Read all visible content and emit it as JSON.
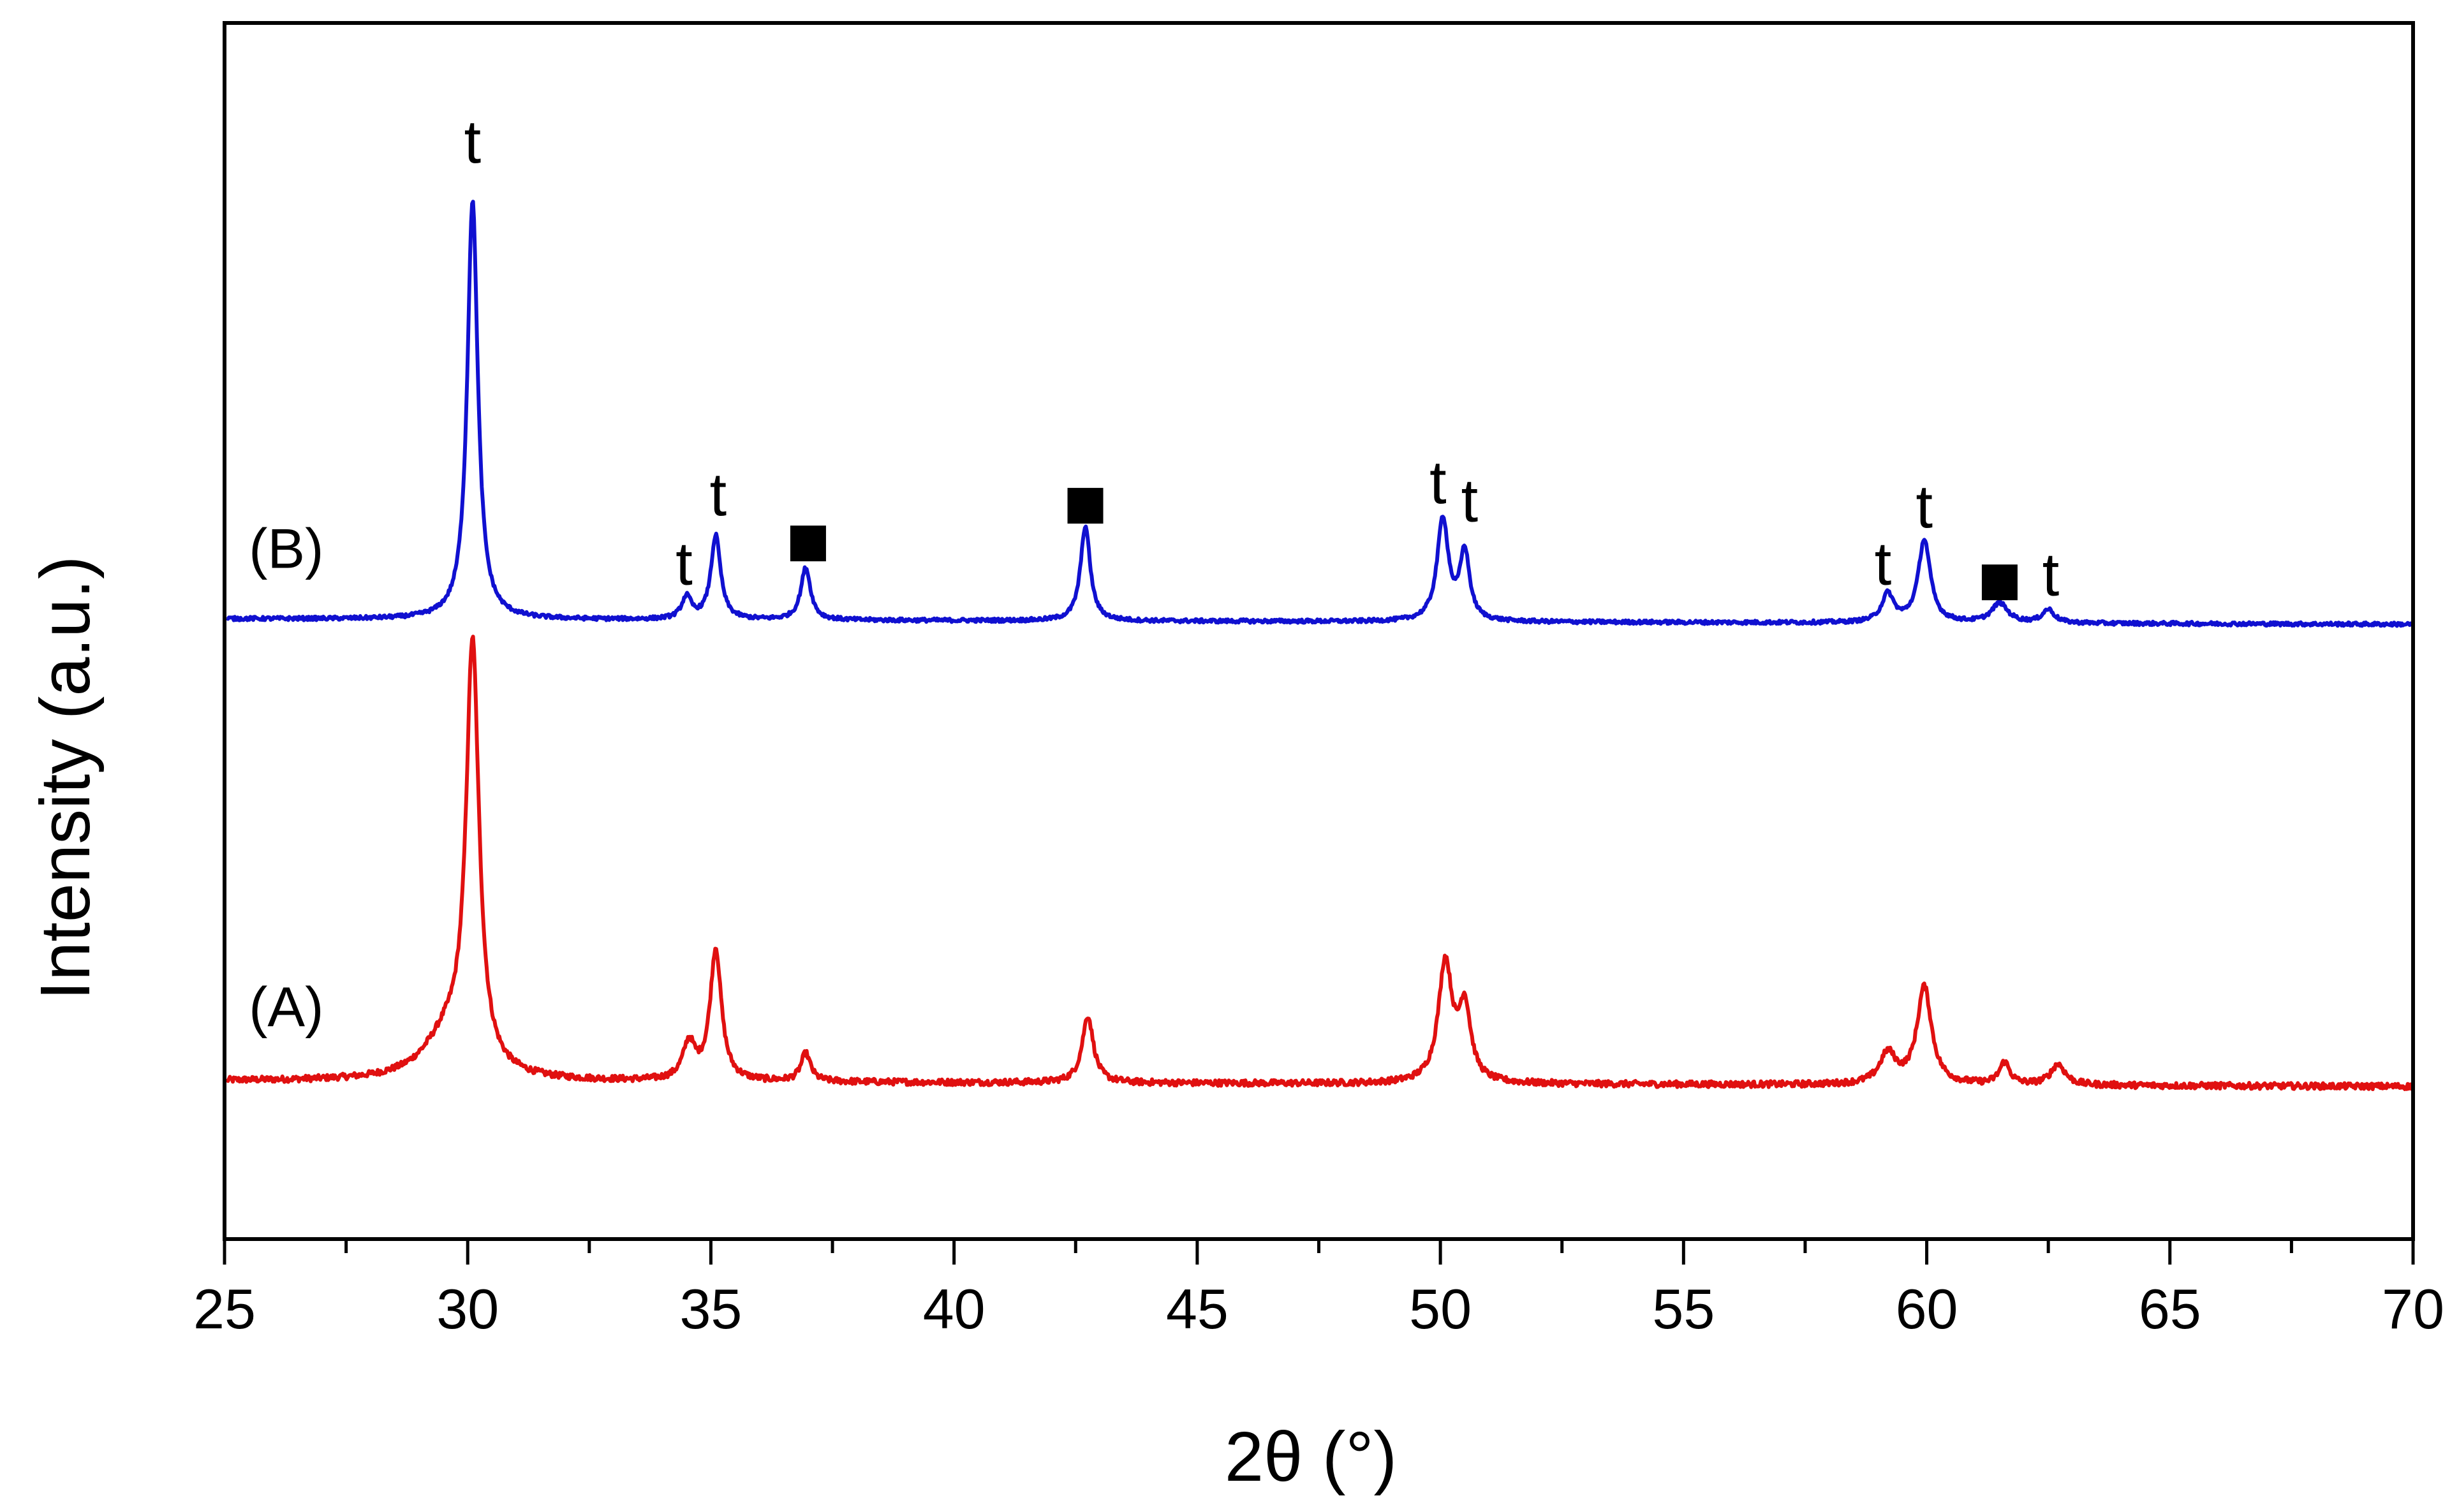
{
  "chart_data": {
    "type": "line",
    "title": "",
    "xlabel": "2θ (°)",
    "ylabel": "Intensity (a.u.)",
    "xlim": [
      25,
      70
    ],
    "ylim": [
      0,
      100
    ],
    "x_major_ticks": [
      25,
      30,
      35,
      40,
      45,
      50,
      55,
      60,
      65,
      70
    ],
    "x_tick_labels": [
      "25",
      "30",
      "35",
      "40",
      "45",
      "50",
      "55",
      "60",
      "65",
      "70"
    ],
    "x_minor_step": 2.5,
    "grid": false,
    "legend": "none",
    "series": [
      {
        "name": "(A)",
        "label": "(A)",
        "color": "#e01010",
        "baseline": 13,
        "baseline_slope": -0.01,
        "noise": 0.25,
        "peaks": [
          {
            "x": 29.6,
            "h": 3.5,
            "w": 0.6
          },
          {
            "x": 30.1,
            "h": 34.5,
            "w": 0.16
          },
          {
            "x": 34.55,
            "h": 3.0,
            "w": 0.15
          },
          {
            "x": 35.1,
            "h": 10.8,
            "w": 0.14
          },
          {
            "x": 36.95,
            "h": 2.3,
            "w": 0.12
          },
          {
            "x": 42.75,
            "h": 5.5,
            "w": 0.14
          },
          {
            "x": 50.1,
            "h": 9.8,
            "w": 0.17
          },
          {
            "x": 50.5,
            "h": 6.0,
            "w": 0.15
          },
          {
            "x": 59.2,
            "h": 2.5,
            "w": 0.2
          },
          {
            "x": 59.95,
            "h": 8.0,
            "w": 0.18
          },
          {
            "x": 61.6,
            "h": 1.8,
            "w": 0.13
          },
          {
            "x": 62.7,
            "h": 1.7,
            "w": 0.18
          }
        ]
      },
      {
        "name": "(B)",
        "label": "(B)",
        "color": "#1010d0",
        "baseline": 51,
        "baseline_slope": -0.01,
        "noise": 0.15,
        "peaks": [
          {
            "x": 30.1,
            "h": 34.5,
            "w": 0.13
          },
          {
            "x": 34.5,
            "h": 1.8,
            "w": 0.12
          },
          {
            "x": 35.1,
            "h": 6.9,
            "w": 0.12
          },
          {
            "x": 36.95,
            "h": 4.3,
            "w": 0.12
          },
          {
            "x": 42.7,
            "h": 7.8,
            "w": 0.12
          },
          {
            "x": 50.05,
            "h": 8.4,
            "w": 0.14
          },
          {
            "x": 50.5,
            "h": 5.6,
            "w": 0.12
          },
          {
            "x": 59.2,
            "h": 2.3,
            "w": 0.15
          },
          {
            "x": 59.95,
            "h": 6.8,
            "w": 0.15
          },
          {
            "x": 61.5,
            "h": 1.6,
            "w": 0.2
          },
          {
            "x": 62.5,
            "h": 1.1,
            "w": 0.15
          }
        ]
      }
    ],
    "annotations": [
      {
        "type": "text",
        "text": "t",
        "x": 30.1,
        "y": 88.5
      },
      {
        "type": "text",
        "text": "t",
        "x": 34.45,
        "y": 53.8
      },
      {
        "type": "text",
        "text": "t",
        "x": 35.15,
        "y": 59.5
      },
      {
        "type": "square",
        "text": "",
        "x": 37.0,
        "y": 57.2
      },
      {
        "type": "square",
        "text": "",
        "x": 42.7,
        "y": 60.3
      },
      {
        "type": "text",
        "text": "t",
        "x": 49.95,
        "y": 60.5
      },
      {
        "type": "text",
        "text": "t",
        "x": 50.6,
        "y": 59.0
      },
      {
        "type": "text",
        "text": "t",
        "x": 59.1,
        "y": 53.8
      },
      {
        "type": "text",
        "text": "t",
        "x": 59.95,
        "y": 58.5
      },
      {
        "type": "square",
        "text": "",
        "x": 61.5,
        "y": 54.0
      },
      {
        "type": "text",
        "text": "t",
        "x": 62.55,
        "y": 52.9
      }
    ],
    "series_label_positions": [
      {
        "label": "(A)",
        "x": 25.5,
        "y": 17.5
      },
      {
        "label": "(B)",
        "x": 25.5,
        "y": 55.2
      }
    ]
  }
}
